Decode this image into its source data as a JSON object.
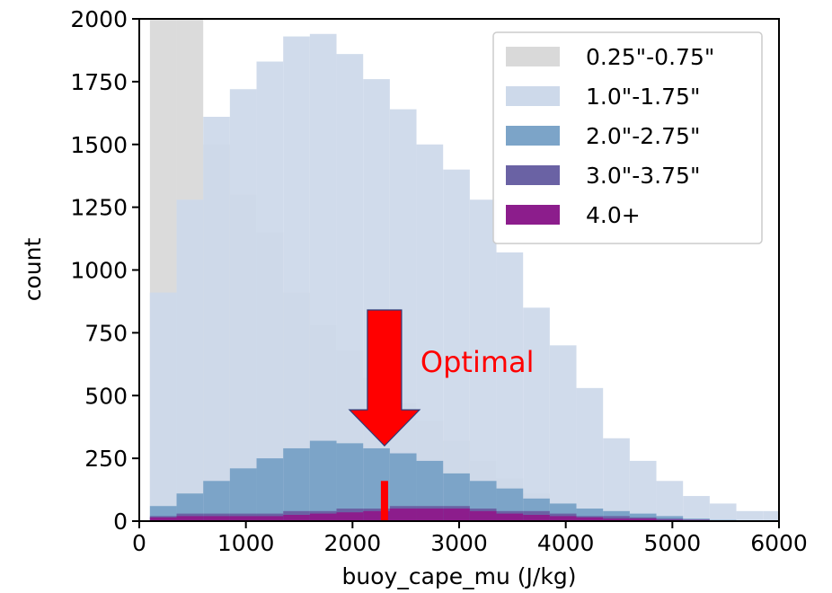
{
  "chart_data": {
    "type": "bar",
    "xlabel": "buoy_cape_mu (J/kg)",
    "ylabel": "count",
    "xlim": [
      0,
      6000
    ],
    "ylim": [
      0,
      2000
    ],
    "xticks": [
      0,
      1000,
      2000,
      3000,
      4000,
      5000,
      6000
    ],
    "yticks": [
      0,
      250,
      500,
      750,
      1000,
      1250,
      1500,
      1750,
      2000
    ],
    "bin_edges": [
      100,
      350,
      600,
      850,
      1100,
      1350,
      1600,
      1850,
      2100,
      2350,
      2600,
      2850,
      3100,
      3350,
      3600,
      3850,
      4100,
      4350,
      4600,
      4850,
      5100,
      5350,
      5600,
      5850,
      6000
    ],
    "legend_position": "top-right",
    "grid": false,
    "series": [
      {
        "name": "0.25\"-0.75\"",
        "color": "#d9d9d9",
        "values": [
          2000,
          2000,
          1500,
          1300,
          1150,
          910,
          780,
          680,
          570,
          470,
          400,
          320,
          240,
          170,
          110,
          70,
          40,
          20,
          10,
          5,
          0,
          0,
          0,
          0
        ]
      },
      {
        "name": "1.0\"-1.75\"",
        "color": "#cdd9ea",
        "values": [
          910,
          1280,
          1610,
          1720,
          1830,
          1930,
          1940,
          1860,
          1760,
          1640,
          1500,
          1400,
          1280,
          1070,
          850,
          700,
          530,
          330,
          240,
          160,
          100,
          70,
          40,
          40
        ]
      },
      {
        "name": "2.0\"-2.75\"",
        "color": "#7ca4c8",
        "values": [
          60,
          110,
          160,
          210,
          250,
          290,
          320,
          310,
          290,
          270,
          240,
          190,
          160,
          130,
          90,
          70,
          50,
          40,
          30,
          20,
          10,
          5,
          0,
          0
        ]
      },
      {
        "name": "3.0\"-3.75\"",
        "color": "#6a62a4",
        "values": [
          20,
          30,
          30,
          30,
          30,
          40,
          40,
          50,
          50,
          60,
          60,
          60,
          50,
          40,
          40,
          30,
          20,
          20,
          15,
          10,
          5,
          0,
          0,
          0
        ]
      },
      {
        "name": "4.0+",
        "color": "#8c1d8c",
        "values": [
          15,
          20,
          20,
          20,
          20,
          25,
          30,
          35,
          40,
          50,
          50,
          50,
          40,
          30,
          25,
          20,
          15,
          10,
          10,
          5,
          5,
          0,
          0,
          0
        ]
      }
    ],
    "annotations": [
      {
        "text": "Optimal",
        "color": "#ff0000",
        "arrow_x": 2300,
        "arrow_tip_y": 300,
        "marker_x": 2300,
        "marker_height": 160
      }
    ]
  }
}
